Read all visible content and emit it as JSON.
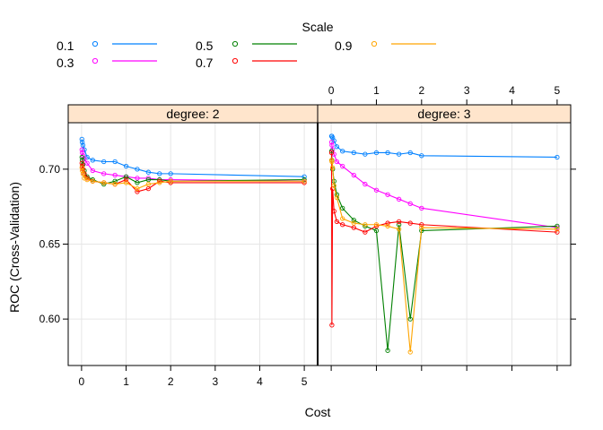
{
  "chart_data": {
    "type": "line",
    "xlabel": "Cost",
    "ylabel": "ROC (Cross-Validation)",
    "xticks": [
      0,
      1,
      2,
      3,
      4,
      5
    ],
    "yticks": [
      0.6,
      0.65,
      0.7
    ],
    "ytick_labels": [
      "0.60",
      "0.65",
      "0.70"
    ],
    "xlim": [
      -0.3,
      5.3
    ],
    "ylim": [
      0.569,
      0.731
    ],
    "grid": true,
    "legend": {
      "title": "Scale",
      "placement": "top",
      "entries": [
        {
          "label": "0.1",
          "color": "#0080FF"
        },
        {
          "label": "0.3",
          "color": "#FF00FF"
        },
        {
          "label": "0.5",
          "color": "#008000"
        },
        {
          "label": "0.7",
          "color": "#FF0000"
        },
        {
          "label": "0.9",
          "color": "#FFA500"
        }
      ]
    },
    "x": [
      0.0078125,
      0.015625,
      0.03125,
      0.0625,
      0.125,
      0.25,
      0.5,
      0.75,
      1.0,
      1.25,
      1.5,
      1.75,
      2.0,
      5.0
    ],
    "panels": [
      {
        "strip": "degree: 2",
        "series": [
          {
            "name": "0.1",
            "values": [
              0.72,
              0.718,
              0.716,
              0.713,
              0.708,
              0.706,
              0.705,
              0.705,
              0.702,
              0.7,
              0.698,
              0.697,
              0.697,
              0.695
            ]
          },
          {
            "name": "0.3",
            "values": [
              0.713,
              0.711,
              0.709,
              0.707,
              0.704,
              0.699,
              0.697,
              0.696,
              0.695,
              0.694,
              0.694,
              0.693,
              0.693,
              0.692
            ]
          },
          {
            "name": "0.5",
            "values": [
              0.708,
              0.706,
              0.703,
              0.699,
              0.695,
              0.693,
              0.69,
              0.692,
              0.695,
              0.691,
              0.693,
              0.693,
              0.692,
              0.693
            ]
          },
          {
            "name": "0.7",
            "values": [
              0.704,
              0.702,
              0.7,
              0.697,
              0.694,
              0.692,
              0.691,
              0.69,
              0.693,
              0.685,
              0.687,
              0.692,
              0.691,
              0.691
            ]
          },
          {
            "name": "0.9",
            "values": [
              0.701,
              0.699,
              0.697,
              0.694,
              0.693,
              0.692,
              0.691,
              0.69,
              0.691,
              0.687,
              0.69,
              0.691,
              0.692,
              0.692
            ]
          }
        ]
      },
      {
        "strip": "degree: 3",
        "series": [
          {
            "name": "0.1",
            "values": [
              0.722,
              0.722,
              0.721,
              0.719,
              0.715,
              0.712,
              0.711,
              0.71,
              0.711,
              0.711,
              0.71,
              0.711,
              0.709,
              0.708
            ]
          },
          {
            "name": "0.3",
            "values": [
              0.718,
              0.716,
              0.713,
              0.71,
              0.705,
              0.702,
              0.696,
              0.69,
              0.686,
              0.683,
              0.68,
              0.677,
              0.674,
              0.661
            ]
          },
          {
            "name": "0.5",
            "values": [
              0.712,
              0.706,
              0.7,
              0.692,
              0.683,
              0.674,
              0.666,
              0.662,
              0.659,
              0.579,
              0.663,
              0.6,
              0.659,
              0.662
            ]
          },
          {
            "name": "0.7",
            "values": [
              0.711,
              0.596,
              0.687,
              0.672,
              0.665,
              0.663,
              0.661,
              0.658,
              0.662,
              0.664,
              0.665,
              0.664,
              0.663,
              0.658
            ]
          },
          {
            "name": "0.9",
            "values": [
              0.706,
              0.705,
              0.701,
              0.689,
              0.681,
              0.667,
              0.664,
              0.663,
              0.663,
              0.662,
              0.66,
              0.578,
              0.661,
              0.66
            ]
          }
        ]
      }
    ]
  }
}
